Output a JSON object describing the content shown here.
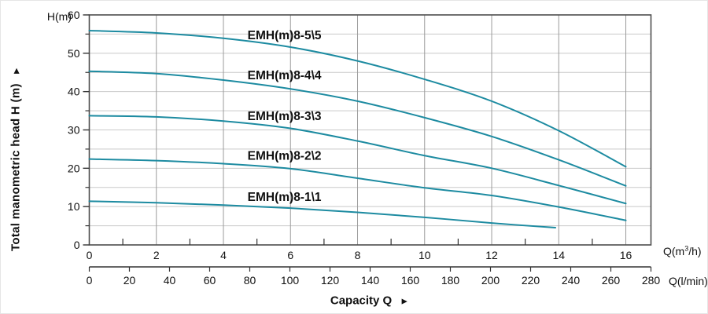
{
  "colors": {
    "curve": "#1d8ba1",
    "grid_horizontal": "#c9c9c9",
    "grid_vertical": "#9b9b9b",
    "frame": "#4d4d4d",
    "tick": "#333333",
    "text": "#111111"
  },
  "chart_data": {
    "type": "line",
    "title": "",
    "xlabel": "Capacity Q",
    "xlabel_arrow": "►",
    "ylabel": "Total manometric head H (m)",
    "ylabel_arrow": "►",
    "grid": {
      "horizontal_step": 5,
      "vertical_step": 2,
      "grid_on": true
    },
    "x_axis_m3h": {
      "unit_prefix": "Q(m",
      "unit_sup": "3",
      "unit_suffix": "/h)",
      "tick_labels": [
        0,
        2,
        4,
        6,
        8,
        10,
        12,
        14,
        16
      ],
      "minor_ticks": [
        1,
        3,
        5,
        7,
        9,
        11,
        13,
        15
      ],
      "max": 16.75
    },
    "x_axis_lmin": {
      "unit": "Q(l/min)",
      "tick_labels": [
        0,
        20,
        40,
        60,
        80,
        100,
        120,
        140,
        160,
        180,
        200,
        220,
        240,
        260,
        280
      ],
      "max": 280
    },
    "y_axis": {
      "unit": "H(m)",
      "tick_labels": [
        0,
        10,
        20,
        30,
        40,
        50,
        60
      ],
      "minor_ticks": [
        5,
        15,
        25,
        35,
        45,
        55
      ],
      "max": 60
    },
    "series": [
      {
        "name": "EMH(m)8-5\\5",
        "x": [
          0,
          2,
          4,
          6,
          8,
          10,
          12,
          14,
          16
        ],
        "head_m": [
          55.9,
          55.3,
          53.9,
          51.6,
          48.0,
          43.2,
          37.5,
          29.8,
          20.4
        ],
        "label_pos": {
          "q": 5.82,
          "h": 54.7
        }
      },
      {
        "name": "EMH(m)8-4\\4",
        "x": [
          0,
          2,
          4,
          6,
          8,
          10,
          12,
          14,
          16
        ],
        "head_m": [
          45.3,
          44.7,
          43.0,
          40.7,
          37.5,
          33.2,
          28.3,
          22.2,
          15.4
        ],
        "label_pos": {
          "q": 5.82,
          "h": 44.2
        }
      },
      {
        "name": "EMH(m)8-3\\3",
        "x": [
          0,
          2,
          4,
          6,
          8,
          10,
          12,
          14,
          16
        ],
        "head_m": [
          33.7,
          33.4,
          32.3,
          30.4,
          27.1,
          23.3,
          20.0,
          15.5,
          10.8
        ],
        "label_pos": {
          "q": 5.82,
          "h": 33.6
        }
      },
      {
        "name": "EMH(m)8-2\\2",
        "x": [
          0,
          2,
          4,
          6,
          8,
          10,
          12,
          14,
          16
        ],
        "head_m": [
          22.4,
          22.0,
          21.2,
          19.9,
          17.4,
          14.9,
          12.9,
          9.9,
          6.4
        ],
        "label_pos": {
          "q": 5.82,
          "h": 23.2
        }
      },
      {
        "name": "EMH(m)8-1\\1",
        "x": [
          0,
          2,
          4,
          6,
          8,
          10,
          12,
          13.9
        ],
        "head_m": [
          11.4,
          11.0,
          10.4,
          9.6,
          8.5,
          7.2,
          5.7,
          4.5
        ],
        "label_pos": {
          "q": 5.82,
          "h": 12.5
        }
      }
    ]
  }
}
